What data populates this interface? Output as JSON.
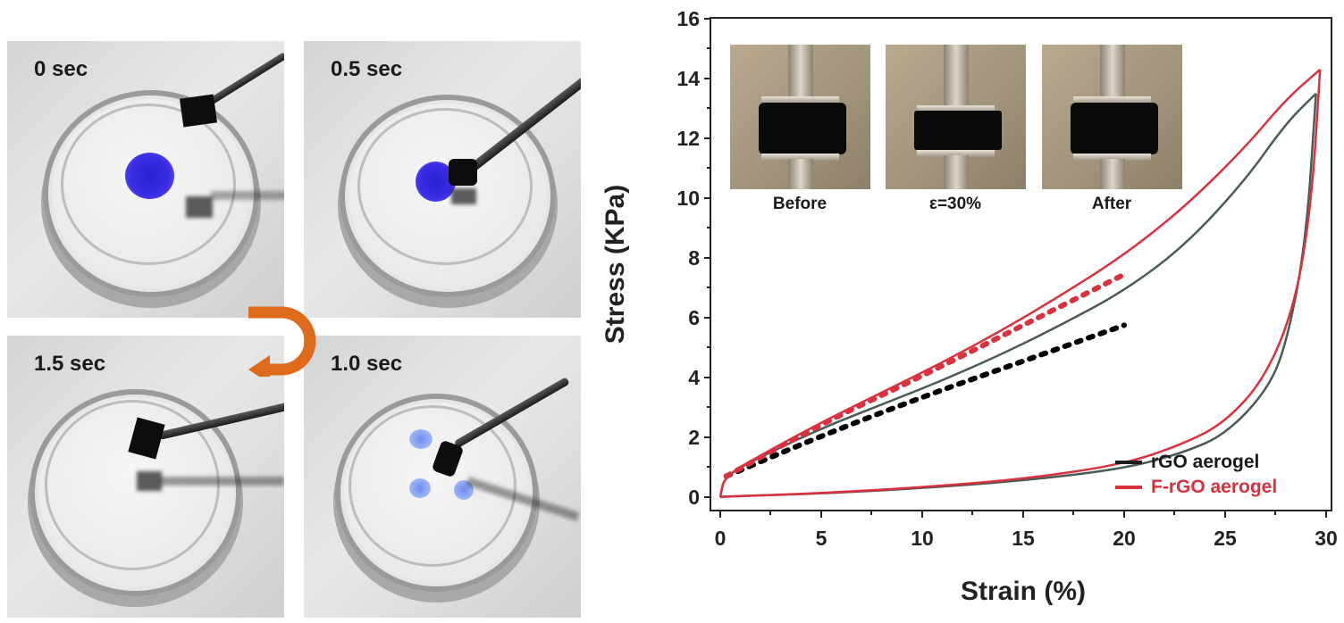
{
  "panels": {
    "photo_sequence": [
      {
        "label": "0 sec",
        "position": "top-left"
      },
      {
        "label": "0.5 sec",
        "position": "top-right"
      },
      {
        "label": "1.0 sec",
        "position": "bottom-right"
      },
      {
        "label": "1.5 sec",
        "position": "bottom-left"
      }
    ],
    "cycle_arrow_color": "#e06a1c",
    "dye_color": "#2f24dd"
  },
  "chart_data": {
    "type": "line",
    "title": "",
    "xlabel": "Strain (%)",
    "ylabel": "Stress (KPa)",
    "xlim": [
      0,
      30
    ],
    "ylim": [
      0,
      16
    ],
    "x_ticks": [
      "0",
      "5",
      "10",
      "15",
      "20",
      "25",
      "30"
    ],
    "y_ticks": [
      "0",
      "2",
      "4",
      "6",
      "8",
      "10",
      "12",
      "14",
      "16"
    ],
    "grid": false,
    "legend_position": "lower right",
    "legend": [
      {
        "label": "rGO aerogel",
        "color": "#1a1a1a"
      },
      {
        "label": "F-rGO aerogel",
        "color": "#d9313e"
      }
    ],
    "series": [
      {
        "name": "rGO aerogel (loading)",
        "color": "#4a5a55",
        "x": [
          0,
          0.2,
          2,
          5,
          8,
          11,
          14,
          17,
          20,
          23,
          26,
          28,
          29.5
        ],
        "y": [
          0,
          0.7,
          1.35,
          2.3,
          3.1,
          3.9,
          4.8,
          5.8,
          6.9,
          8.4,
          10.6,
          12.5,
          13.5
        ]
      },
      {
        "name": "rGO aerogel (unloading)",
        "color": "#4a5a55",
        "x": [
          29.5,
          29,
          28,
          27,
          25,
          23,
          20,
          15,
          10,
          5,
          0.2,
          0
        ],
        "y": [
          13.5,
          8.5,
          5.0,
          3.5,
          2.1,
          1.5,
          0.95,
          0.55,
          0.3,
          0.12,
          0.02,
          0
        ]
      },
      {
        "name": "F-rGO aerogel (loading)",
        "color": "#d9313e",
        "x": [
          0,
          0.2,
          2,
          5,
          8,
          11,
          14,
          17,
          20,
          23,
          26,
          28,
          29.7
        ],
        "y": [
          0,
          0.7,
          1.4,
          2.5,
          3.5,
          4.5,
          5.6,
          6.8,
          8.1,
          9.7,
          11.7,
          13.3,
          14.3
        ]
      },
      {
        "name": "F-rGO aerogel (unloading)",
        "color": "#d9313e",
        "x": [
          29.7,
          29.3,
          28.5,
          27,
          25,
          23,
          20,
          15,
          10,
          5,
          0.2,
          0
        ],
        "y": [
          14.3,
          10.0,
          6.5,
          4.0,
          2.5,
          1.8,
          1.1,
          0.6,
          0.33,
          0.13,
          0.02,
          0
        ]
      },
      {
        "name": "rGO linear fit (dotted)",
        "color": "#000000",
        "style": "dotted",
        "x": [
          0.3,
          5,
          10,
          15,
          20
        ],
        "y": [
          0.7,
          2.05,
          3.35,
          4.55,
          5.75
        ]
      },
      {
        "name": "F-rGO linear fit (dotted)",
        "color": "#d9313e",
        "style": "dotted",
        "x": [
          0.3,
          5,
          10,
          15,
          20
        ],
        "y": [
          0.7,
          2.45,
          4.05,
          5.75,
          7.45
        ]
      }
    ],
    "insets": [
      {
        "label": "Before"
      },
      {
        "label": "ε=30%"
      },
      {
        "label": "After"
      }
    ]
  }
}
